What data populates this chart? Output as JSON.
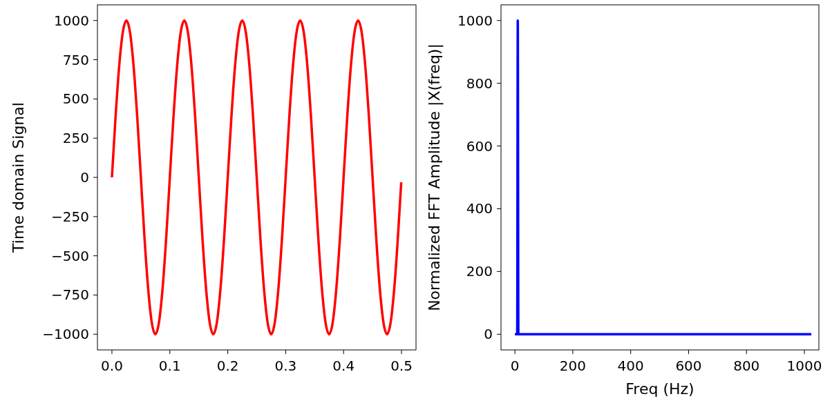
{
  "chart_data": [
    {
      "type": "line",
      "ylabel": "Time domain Signal",
      "xlim": [
        -0.025,
        0.525
      ],
      "ylim": [
        -1100,
        1100
      ],
      "xticks": [
        {
          "value": 0,
          "label": "0.0"
        },
        {
          "value": 0.1,
          "label": "0.1"
        },
        {
          "value": 0.2,
          "label": "0.2"
        },
        {
          "value": 0.3,
          "label": "0.3"
        },
        {
          "value": 0.4,
          "label": "0.4"
        },
        {
          "value": 0.5,
          "label": "0.5"
        }
      ],
      "yticks": [
        {
          "value": -1000,
          "label": "−1000"
        },
        {
          "value": -750,
          "label": "−750"
        },
        {
          "value": -500,
          "label": "−500"
        },
        {
          "value": -250,
          "label": "−250"
        },
        0,
        250,
        500,
        750,
        1000
      ],
      "grid": false,
      "series": [
        {
          "color": "#ff0000",
          "x": [
            0,
            0.00625,
            0.0125,
            0.01875,
            0.025,
            0.03125,
            0.0375,
            0.04375,
            0.05,
            0.05625,
            0.0625,
            0.06875,
            0.075,
            0.08125,
            0.0875,
            0.09375,
            0.1,
            0.10625,
            0.1125,
            0.11875,
            0.125,
            0.13125,
            0.1375,
            0.14375,
            0.15,
            0.15625,
            0.1625,
            0.16875,
            0.175,
            0.18125,
            0.1875,
            0.19375,
            0.2,
            0.20625,
            0.2125,
            0.21875,
            0.225,
            0.23125,
            0.2375,
            0.24375,
            0.25,
            0.25625,
            0.2625,
            0.26875,
            0.275,
            0.28125,
            0.2875,
            0.29375,
            0.3,
            0.30625,
            0.3125,
            0.31875,
            0.325,
            0.33125,
            0.3375,
            0.34375,
            0.35,
            0.35625,
            0.3625,
            0.36875,
            0.375,
            0.38125,
            0.3875,
            0.39375,
            0.4,
            0.40625,
            0.4125,
            0.41875,
            0.425,
            0.43125,
            0.4375,
            0.44375,
            0.45,
            0.45625,
            0.4625,
            0.46875,
            0.475,
            0.48125,
            0.4875,
            0.49375,
            0.4995
          ],
          "values": [
            0,
            383,
            707,
            924,
            1000,
            924,
            707,
            383,
            0,
            -383,
            -707,
            -924,
            -1000,
            -924,
            -707,
            -383,
            0,
            383,
            707,
            924,
            1000,
            924,
            707,
            383,
            0,
            -383,
            -707,
            -924,
            -1000,
            -924,
            -707,
            -383,
            0,
            383,
            707,
            924,
            1000,
            924,
            707,
            383,
            0,
            -383,
            -707,
            -924,
            -1000,
            -924,
            -707,
            -383,
            0,
            383,
            707,
            924,
            1000,
            924,
            707,
            383,
            0,
            -383,
            -707,
            -924,
            -1000,
            -924,
            -707,
            -383,
            0,
            383,
            707,
            924,
            1000,
            924,
            707,
            383,
            0,
            -383,
            -707,
            -924,
            -1000,
            -924,
            -707,
            -383,
            -31
          ]
        }
      ]
    },
    {
      "type": "line",
      "xlabel": "Freq (Hz)",
      "ylabel": "Normalized FFT Amplitude |X(freq)|",
      "xlim": [
        -48,
        1050
      ],
      "ylim": [
        -50,
        1050
      ],
      "xticks": [
        0,
        200,
        400,
        600,
        800,
        1000
      ],
      "yticks": [
        0,
        200,
        400,
        600,
        800,
        1000
      ],
      "grid": false,
      "series": [
        {
          "color": "#0000ff",
          "x": [
            0,
            8,
            10,
            12,
            1024
          ],
          "values": [
            0,
            0,
            1000,
            0,
            0
          ]
        }
      ]
    }
  ]
}
